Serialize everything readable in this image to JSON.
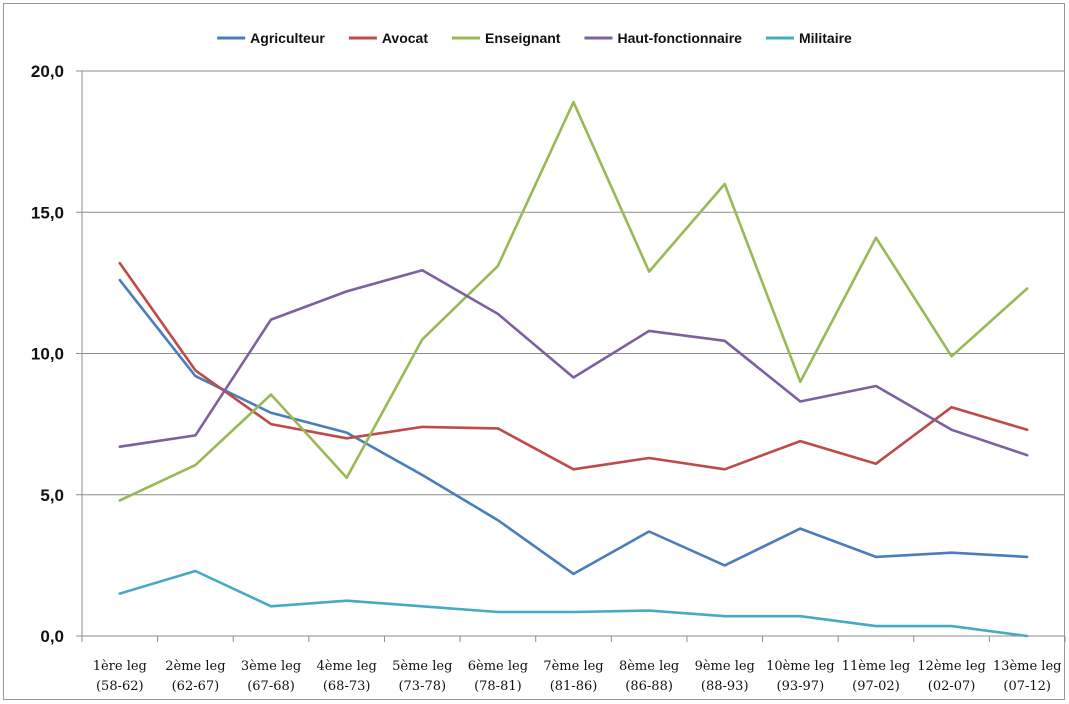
{
  "chart_data": {
    "type": "line",
    "title": "",
    "xlabel": "",
    "ylabel": "",
    "ylim": [
      0,
      20
    ],
    "yticks": [
      "0,0",
      "5,0",
      "10,0",
      "15,0",
      "20,0"
    ],
    "ytick_values": [
      0,
      5,
      10,
      15,
      20
    ],
    "grid": "horizontal",
    "legend_position": "top",
    "categories": [
      [
        "1ère leg",
        "(58-62)"
      ],
      [
        "2ème leg",
        "(62-67)"
      ],
      [
        "3ème leg",
        "(67-68)"
      ],
      [
        "4ème leg",
        "(68-73)"
      ],
      [
        "5ème leg",
        "(73-78)"
      ],
      [
        "6ème leg",
        "(78-81)"
      ],
      [
        "7ème leg",
        "(81-86)"
      ],
      [
        "8ème leg",
        "(86-88)"
      ],
      [
        "9ème leg",
        "(88-93)"
      ],
      [
        "10ème leg",
        "(93-97)"
      ],
      [
        "11ème leg",
        "(97-02)"
      ],
      [
        "12ème leg",
        "(02-07)"
      ],
      [
        "13ème leg",
        "(07-12)"
      ]
    ],
    "series": [
      {
        "name": "Agriculteur",
        "color": "#4a7ebb",
        "values": [
          12.6,
          9.2,
          7.9,
          7.2,
          5.7,
          4.1,
          2.2,
          3.7,
          2.5,
          3.8,
          2.8,
          2.95,
          2.8
        ]
      },
      {
        "name": "Avocat",
        "color": "#be4b48",
        "values": [
          13.2,
          9.4,
          7.5,
          7.0,
          7.4,
          7.35,
          5.9,
          6.3,
          5.9,
          6.9,
          6.1,
          8.1,
          7.3
        ]
      },
      {
        "name": "Enseignant",
        "color": "#98b954",
        "values": [
          4.8,
          6.05,
          8.55,
          5.6,
          10.5,
          13.1,
          18.9,
          12.9,
          16.0,
          9.0,
          14.1,
          9.9,
          12.3
        ]
      },
      {
        "name": "Haut-fonctionnaire",
        "color": "#7d60a0",
        "values": [
          6.7,
          7.1,
          11.2,
          12.2,
          12.95,
          11.4,
          9.15,
          10.8,
          10.45,
          8.3,
          8.85,
          7.3,
          6.4
        ]
      },
      {
        "name": "Militaire",
        "color": "#46aac5",
        "values": [
          1.5,
          2.3,
          1.05,
          1.25,
          1.05,
          0.85,
          0.85,
          0.9,
          0.7,
          0.7,
          0.35,
          0.35,
          0.0
        ]
      }
    ]
  }
}
